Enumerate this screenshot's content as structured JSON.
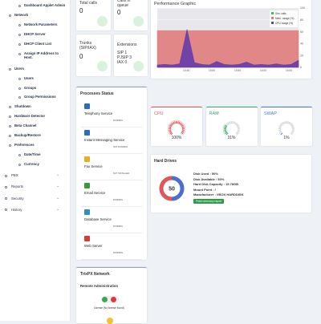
{
  "sidebar": {
    "items": [
      "Dashboard Applet Admin",
      "Network",
      "Network Parameters",
      "DHCP Server",
      "DHCP Client List",
      "Assign IP Address to Host.",
      "Users",
      "Users",
      "Groups",
      "Group Permissions",
      "Shutdown",
      "Hardware Detector",
      "Beta Channel",
      "Backup/Restore",
      "Preferences",
      "Date/Time",
      "Currency"
    ],
    "menus": [
      "PBX",
      "Reports",
      "Security",
      "History"
    ]
  },
  "stats": {
    "total_calls": {
      "title": "Total calls",
      "value": "0"
    },
    "calls_in_queue": {
      "title": "Calls in queue",
      "value": "0"
    },
    "trunks": {
      "title": "Trunks (SIP/IAX)",
      "value": "0"
    },
    "extensions": {
      "title": "Extensions",
      "value": "SIP 1 PJSIP 3 IAX 0"
    }
  },
  "performance": {
    "title": "Performance Graphic",
    "ylim": [
      0,
      100
    ],
    "yticks": [
      0,
      20,
      40,
      60,
      80,
      100
    ],
    "xtick_labels": [
      "13:45",
      "13:50",
      "13:55",
      "14:00",
      "14:05"
    ],
    "series": [
      {
        "name": "Sim. calls",
        "color": "#3fbf4f",
        "values": [
          0,
          0,
          0,
          0,
          0,
          0,
          0,
          0,
          0,
          0,
          0,
          0,
          0,
          0,
          0,
          0,
          0,
          0,
          0,
          0
        ]
      },
      {
        "name": "Mem. usage (%)",
        "color": "#e07c7c",
        "values": [
          62,
          62,
          62,
          62,
          62,
          62,
          62,
          62,
          62,
          62,
          62,
          62,
          62,
          62,
          62,
          62,
          62,
          62,
          62,
          62
        ]
      },
      {
        "name": "CPU usage (%)",
        "color": "#6a3fa8",
        "values": [
          4,
          5,
          4,
          6,
          64,
          8,
          5,
          4,
          10,
          5,
          4,
          5,
          9,
          4,
          5,
          4,
          6,
          4,
          5,
          12
        ]
      }
    ]
  },
  "processes": {
    "title": "Processes Status",
    "items": [
      {
        "name": "Telephony Service",
        "status": "RUNNING"
      },
      {
        "name": "Instant Messaging Service",
        "status": "NOT RUNNING"
      },
      {
        "name": "Fax Service",
        "status": "NOT INSTALLED"
      },
      {
        "name": "Email Service",
        "status": "RUNNING"
      },
      {
        "name": "Database Service",
        "status": "RUNNING"
      },
      {
        "name": "Web Server",
        "status": "RUNNING"
      }
    ]
  },
  "gauges": [
    {
      "title": "CPU",
      "value": 100,
      "label": "100%",
      "color": "#e05555"
    },
    {
      "title": "RAM",
      "value": 31,
      "label": "31%",
      "color": "#3aa86b"
    },
    {
      "title": "SWAP",
      "value": 1,
      "label": "1%",
      "color": "#4a7bd0"
    }
  ],
  "hard_drives": {
    "title": "Hard Drives",
    "donut": [
      50,
      50
    ],
    "colors": [
      "#4a6fd0",
      "#e05555"
    ],
    "lines": [
      "Disk Used : 50%",
      "Disk Available : 50%",
      "Hard Disk Capacity : 15.78GB",
      "Mount Point : /",
      "Manufacturer : VBOX HARDDISK"
    ],
    "button": "Fetch directory report"
  },
  "network": {
    "title": "TrixPX Network",
    "subtitle": "Remote Administration",
    "license": "License (No license found)"
  }
}
